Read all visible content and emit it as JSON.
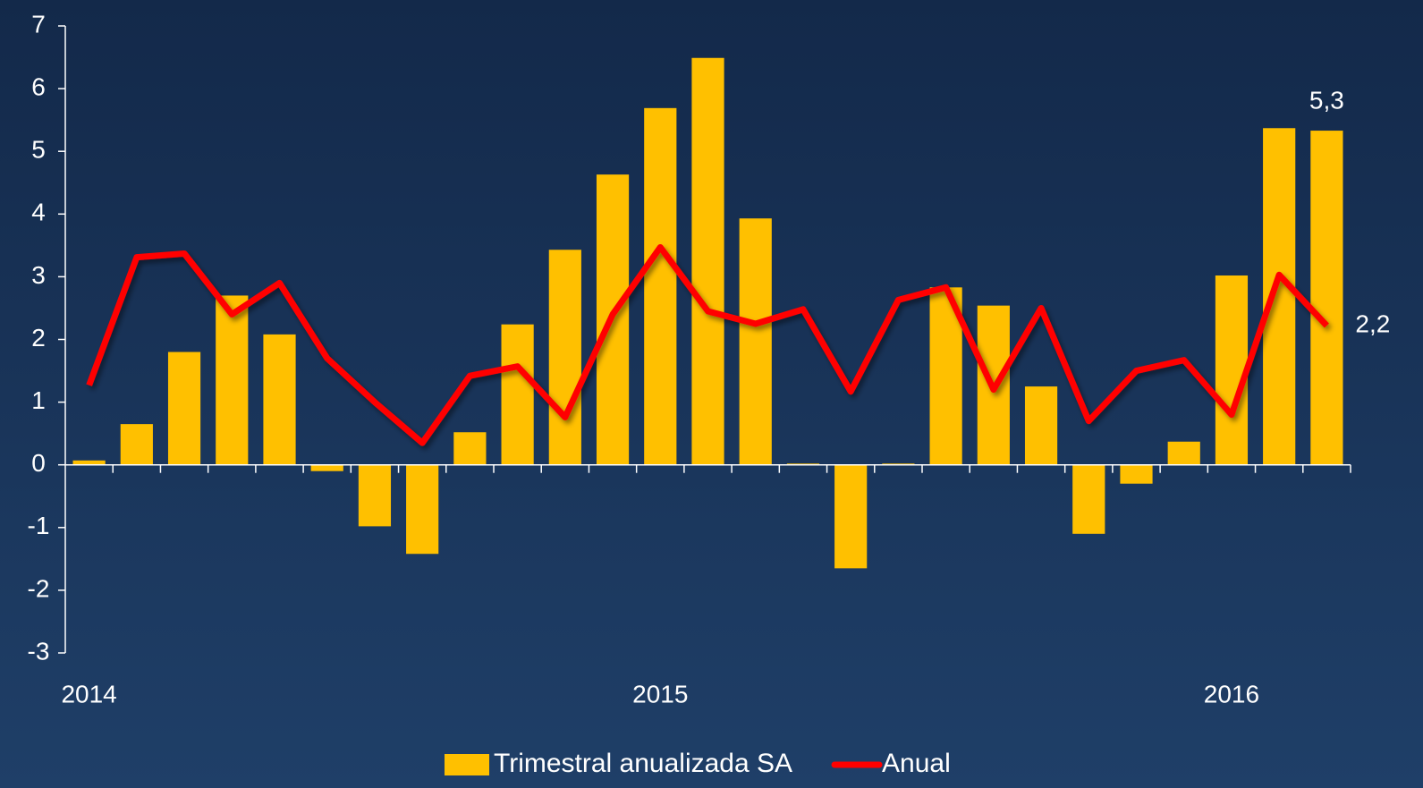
{
  "chart_data": {
    "type": "bar_line",
    "categories": [
      "2014",
      null,
      null,
      null,
      null,
      null,
      null,
      null,
      null,
      null,
      null,
      null,
      "2015",
      null,
      null,
      null,
      null,
      null,
      null,
      null,
      null,
      null,
      null,
      null,
      "2016",
      null,
      null
    ],
    "series": [
      {
        "name": "Trimestral anualizada SA",
        "type": "bar",
        "color": "#ffc000",
        "values": [
          0.07,
          0.65,
          1.8,
          2.7,
          2.08,
          -0.1,
          -0.98,
          -1.42,
          0.52,
          2.24,
          3.43,
          4.63,
          5.69,
          6.49,
          3.93,
          0.02,
          -1.65,
          0.02,
          2.83,
          2.54,
          1.25,
          -1.1,
          -0.3,
          0.37,
          3.02,
          5.37,
          5.33
        ],
        "value_labels": [
          null,
          null,
          null,
          null,
          null,
          null,
          null,
          null,
          null,
          null,
          null,
          null,
          null,
          null,
          null,
          null,
          null,
          null,
          null,
          null,
          null,
          null,
          null,
          null,
          null,
          null,
          "5,3"
        ]
      },
      {
        "name": "Anual",
        "type": "line",
        "color": "#ff0000",
        "values": [
          1.27,
          3.31,
          3.37,
          2.4,
          2.9,
          1.7,
          1.0,
          0.35,
          1.42,
          1.57,
          0.76,
          2.4,
          3.47,
          2.45,
          2.25,
          2.48,
          1.17,
          2.63,
          2.83,
          1.2,
          2.5,
          0.7,
          1.5,
          1.67,
          0.8,
          3.03,
          2.22
        ],
        "value_labels": [
          null,
          null,
          null,
          null,
          null,
          null,
          null,
          null,
          null,
          null,
          null,
          null,
          null,
          null,
          null,
          null,
          null,
          null,
          null,
          null,
          null,
          null,
          null,
          null,
          null,
          null,
          "2,2"
        ]
      }
    ],
    "ylim": [
      -3,
      7
    ],
    "yticks": [
      -3,
      -2,
      -1,
      0,
      1,
      2,
      3,
      4,
      5,
      6,
      7
    ],
    "legend": "bottom"
  }
}
